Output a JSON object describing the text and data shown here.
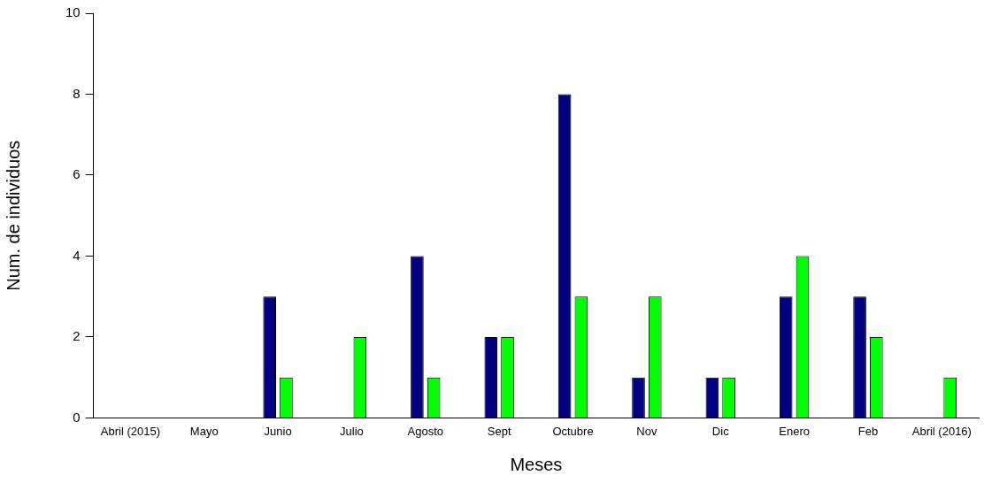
{
  "chart_data": {
    "type": "bar",
    "xlabel": "Meses",
    "ylabel": "Num. de individuos",
    "categories": [
      "Abril (2015)",
      "Mayo",
      "Junio",
      "Julio",
      "Agosto",
      "Sept",
      "Octubre",
      "Nov",
      "Dic",
      "Enero",
      "Feb",
      "Abril (2016)"
    ],
    "series": [
      {
        "color": "#000080",
        "values": [
          0,
          0,
          3,
          0,
          4,
          2,
          8,
          1,
          1,
          3,
          3,
          0
        ]
      },
      {
        "color": "#00ff00",
        "values": [
          0,
          0,
          1,
          2,
          1,
          2,
          3,
          3,
          1,
          4,
          2,
          1
        ]
      }
    ],
    "ylim": [
      0,
      10
    ],
    "yticks": [
      0,
      2,
      4,
      6,
      8,
      10
    ],
    "grid": false,
    "legend": false
  }
}
